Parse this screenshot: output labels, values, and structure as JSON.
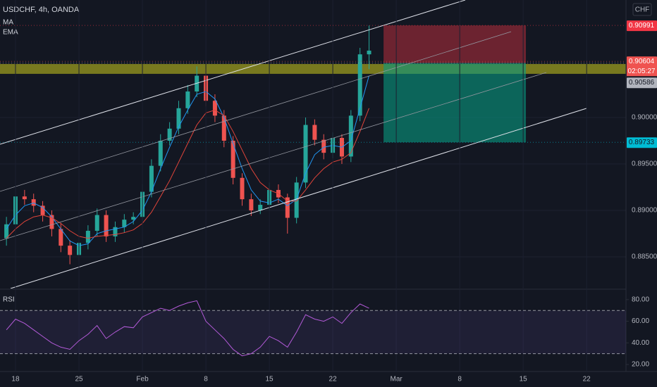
{
  "chart_data": [
    {
      "type": "candlestick",
      "title": "USDCHF, 4h, OANDA",
      "currency": "CHF",
      "x": [
        -1,
        0,
        1,
        2,
        3,
        4,
        5,
        6,
        7,
        8,
        9,
        10,
        11,
        12,
        13,
        14,
        15,
        16,
        17,
        18,
        19,
        20,
        21,
        22,
        23,
        24,
        25,
        26,
        27,
        28,
        29,
        30,
        31,
        32,
        33,
        34,
        35,
        36,
        37,
        38,
        39
      ],
      "open": [
        0.887,
        0.8885,
        0.8915,
        0.8912,
        0.8905,
        0.8895,
        0.888,
        0.8862,
        0.8852,
        0.8865,
        0.8878,
        0.8895,
        0.8872,
        0.8882,
        0.889,
        0.8893,
        0.892,
        0.8948,
        0.8975,
        0.8988,
        0.901,
        0.9028,
        0.9045,
        0.9018,
        0.9002,
        0.8975,
        0.8935,
        0.8912,
        0.89,
        0.8906,
        0.8922,
        0.8914,
        0.8892,
        0.893,
        0.8992,
        0.8976,
        0.8962,
        0.8978,
        0.8958,
        0.9002,
        0.9068
      ],
      "high": [
        0.8893,
        0.8925,
        0.8922,
        0.8918,
        0.891,
        0.89,
        0.8886,
        0.8868,
        0.8872,
        0.8884,
        0.8902,
        0.89,
        0.8888,
        0.8896,
        0.8898,
        0.8928,
        0.8955,
        0.8982,
        0.8995,
        0.9018,
        0.9035,
        0.9055,
        0.9052,
        0.9025,
        0.9008,
        0.898,
        0.894,
        0.8918,
        0.8912,
        0.893,
        0.8928,
        0.8918,
        0.8936,
        0.9,
        0.8998,
        0.8982,
        0.8984,
        0.8982,
        0.9008,
        0.9075,
        0.9099
      ],
      "low": [
        0.8862,
        0.8878,
        0.8906,
        0.8898,
        0.8888,
        0.8872,
        0.8855,
        0.8842,
        0.8846,
        0.8858,
        0.8872,
        0.8866,
        0.8866,
        0.8876,
        0.8885,
        0.8888,
        0.8914,
        0.8942,
        0.897,
        0.8982,
        0.9004,
        0.9022,
        0.9012,
        0.8995,
        0.8968,
        0.8928,
        0.8905,
        0.8894,
        0.8896,
        0.89,
        0.8908,
        0.8875,
        0.8886,
        0.8924,
        0.897,
        0.8955,
        0.8956,
        0.895,
        0.8952,
        0.8996,
        0.9052
      ],
      "close": [
        0.8885,
        0.8915,
        0.8912,
        0.8905,
        0.8895,
        0.888,
        0.8862,
        0.8852,
        0.8865,
        0.8878,
        0.8895,
        0.8872,
        0.8882,
        0.889,
        0.8893,
        0.892,
        0.8948,
        0.8975,
        0.8988,
        0.901,
        0.9028,
        0.9045,
        0.9018,
        0.9002,
        0.8975,
        0.8935,
        0.8912,
        0.89,
        0.8906,
        0.8922,
        0.8914,
        0.8892,
        0.893,
        0.8992,
        0.8976,
        0.8962,
        0.8978,
        0.8958,
        0.9002,
        0.9068,
        0.9072
      ],
      "up_color": "#26a69a",
      "down_color": "#ef5350",
      "series": [
        {
          "name": "MA",
          "color": "#2196f3",
          "values": [
            0.888,
            0.8895,
            0.8905,
            0.8908,
            0.8903,
            0.8893,
            0.888,
            0.8867,
            0.8862,
            0.8864,
            0.8875,
            0.8878,
            0.888,
            0.8882,
            0.8888,
            0.89,
            0.892,
            0.8945,
            0.8968,
            0.899,
            0.9008,
            0.9025,
            0.9028,
            0.902,
            0.9,
            0.8972,
            0.8945,
            0.8922,
            0.891,
            0.8908,
            0.8912,
            0.8905,
            0.8912,
            0.894,
            0.896,
            0.8968,
            0.897,
            0.8968,
            0.8975,
            0.901,
            0.9045
          ]
        },
        {
          "name": "EMA",
          "color": "#e0443a",
          "values": [
            0.887,
            0.888,
            0.8888,
            0.8893,
            0.8895,
            0.8892,
            0.8886,
            0.8878,
            0.8872,
            0.887,
            0.8872,
            0.8873,
            0.8874,
            0.8876,
            0.8879,
            0.8886,
            0.8898,
            0.8915,
            0.8932,
            0.8952,
            0.8972,
            0.8992,
            0.9005,
            0.9008,
            0.9002,
            0.8985,
            0.8965,
            0.8945,
            0.893,
            0.8922,
            0.8918,
            0.891,
            0.891,
            0.8922,
            0.8935,
            0.8945,
            0.8952,
            0.8955,
            0.8962,
            0.8985,
            0.901
          ]
        }
      ],
      "xlim": [
        -1.71,
        67.34
      ],
      "xticks": [
        {
          "value": 0,
          "label": "18"
        },
        {
          "value": 7,
          "label": "25"
        },
        {
          "value": 14,
          "label": "Feb"
        },
        {
          "value": 21,
          "label": "8"
        },
        {
          "value": 28,
          "label": "15"
        },
        {
          "value": 35,
          "label": "22"
        },
        {
          "value": 42,
          "label": "Mar"
        },
        {
          "value": 49,
          "label": "8"
        },
        {
          "value": 56,
          "label": "15"
        },
        {
          "value": 63,
          "label": "22"
        }
      ],
      "ylim": [
        0.88159,
        0.91265
      ],
      "yticks": [
        {
          "value": 0.885,
          "label": "0.88500"
        },
        {
          "value": 0.89,
          "label": "0.89000"
        },
        {
          "value": 0.895,
          "label": "0.89500"
        },
        {
          "value": 0.9,
          "label": "0.90000"
        }
      ],
      "grid": true,
      "zone": {
        "low": 0.9047,
        "high": 0.90576,
        "color": "#9b9b1f"
      },
      "position": {
        "entry": 0.90586,
        "stop": 0.90991,
        "target": 0.89733,
        "x_start": 40.6,
        "x_end": 56.3,
        "stop_color": "#f23645",
        "target_color": "#089981"
      },
      "price_labels": [
        {
          "value": 0.90991,
          "label": "0.90991",
          "color": "#f23645"
        },
        {
          "value": 0.90604,
          "label": "0.90604",
          "color": "#ef5350",
          "countdown": "02:05:27"
        },
        {
          "value": 0.90586,
          "label": "0.90586",
          "color": "#b2b5be"
        },
        {
          "value": 0.89733,
          "label": "0.89733",
          "color": "#00bcd4"
        }
      ]
    },
    {
      "type": "line",
      "title": "RSI",
      "x": [
        -1,
        0,
        1,
        2,
        3,
        4,
        5,
        6,
        7,
        8,
        9,
        10,
        11,
        12,
        13,
        14,
        15,
        16,
        17,
        18,
        19,
        20,
        21,
        22,
        23,
        24,
        25,
        26,
        27,
        28,
        29,
        30,
        31,
        32,
        33,
        34,
        35,
        36,
        37,
        38,
        39
      ],
      "series": [
        {
          "name": "RSI",
          "color": "#b35ad8",
          "values": [
            52,
            62,
            58,
            52,
            46,
            40,
            36,
            34,
            42,
            48,
            56,
            44,
            50,
            55,
            54,
            64,
            68,
            72,
            70,
            74,
            77,
            79,
            60,
            52,
            44,
            34,
            28,
            30,
            36,
            46,
            42,
            36,
            50,
            66,
            62,
            60,
            64,
            58,
            68,
            76,
            72
          ]
        }
      ],
      "ylim": [
        13.5,
        89
      ],
      "yticks": [
        {
          "value": 20,
          "label": "20.00"
        },
        {
          "value": 40,
          "label": "40.00"
        },
        {
          "value": 60,
          "label": "60.00"
        },
        {
          "value": 80,
          "label": "80.00"
        }
      ],
      "bands": [
        30,
        70
      ],
      "band_color": "#7e57c2"
    }
  ]
}
